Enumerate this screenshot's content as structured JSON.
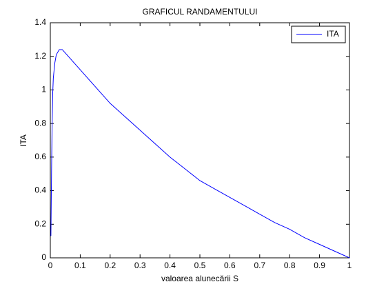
{
  "chart_data": {
    "type": "line",
    "title": "GRAFICUL RANDAMENTULUI",
    "x_label": "valoarea alunecării S",
    "y_label": "ITA",
    "x": [
      0.002,
      0.004,
      0.006,
      0.008,
      0.01,
      0.015,
      0.02,
      0.03,
      0.04,
      0.05,
      0.07,
      0.1,
      0.15,
      0.2,
      0.25,
      0.3,
      0.35,
      0.4,
      0.45,
      0.5,
      0.55,
      0.6,
      0.65,
      0.7,
      0.75,
      0.8,
      0.85,
      0.9,
      0.95,
      1.0
    ],
    "series": [
      {
        "name": "ITA",
        "color": "#0000ff",
        "values": [
          0.13,
          0.5,
          0.8,
          0.98,
          1.07,
          1.16,
          1.21,
          1.24,
          1.24,
          1.22,
          1.18,
          1.12,
          1.02,
          0.92,
          0.84,
          0.76,
          0.68,
          0.6,
          0.53,
          0.46,
          0.41,
          0.36,
          0.31,
          0.26,
          0.21,
          0.17,
          0.12,
          0.08,
          0.04,
          0.0
        ]
      }
    ],
    "xlim": [
      0,
      1
    ],
    "ylim": [
      0,
      1.4
    ],
    "xticks": [
      0,
      0.1,
      0.2,
      0.3,
      0.4,
      0.5,
      0.6,
      0.7,
      0.8,
      0.9,
      1
    ],
    "yticks": [
      0,
      0.2,
      0.4,
      0.6,
      0.8,
      1,
      1.2,
      1.4
    ],
    "legend": "top-right",
    "grid": false
  }
}
